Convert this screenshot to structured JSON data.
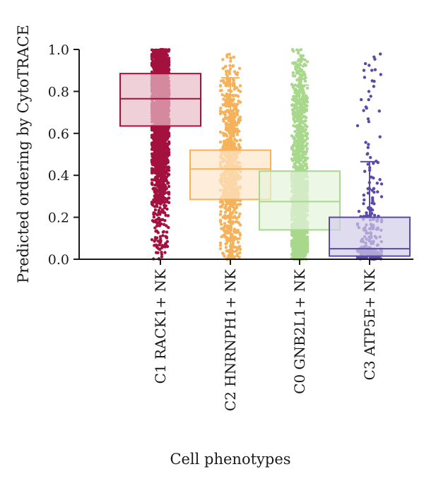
{
  "chart_data": {
    "type": "box",
    "title": "",
    "xlabel": "Cell phenotypes",
    "ylabel": "Predicted ordering by CytoTRACE",
    "ylim": [
      0,
      1.0
    ],
    "yticks": [
      "0.0",
      "0.2",
      "0.4",
      "0.6",
      "0.8",
      "1.0"
    ],
    "ytick_values": [
      0,
      0.2,
      0.4,
      0.6,
      0.8,
      1.0
    ],
    "grid": false,
    "categories": [
      "C1 RACK1+ NK",
      "C2 HNRNPH1+ NK",
      "C0 GNB2L1+ NK",
      "C3 ATP5E+ NK"
    ],
    "series": [
      {
        "category": "C1 RACK1+ NK",
        "color": "#a3123f",
        "fill": "#e8bcc9",
        "whisker_low": 0.27,
        "q1": 0.635,
        "median": 0.765,
        "q3": 0.885,
        "whisker_high": 1.0,
        "points_min": 0.0,
        "points_max": 1.0
      },
      {
        "category": "C2 HNRNPH1+ NK",
        "color": "#f5b25b",
        "fill": "#fde6c8",
        "whisker_low": 0.0,
        "q1": 0.285,
        "median": 0.43,
        "q3": 0.52,
        "whisker_high": 0.865,
        "points_min": 0.0,
        "points_max": 0.98
      },
      {
        "category": "C0 GNB2L1+ NK",
        "color": "#a8d88c",
        "fill": "#e5f4dc",
        "whisker_low": 0.0,
        "q1": 0.14,
        "median": 0.275,
        "q3": 0.42,
        "whisker_high": 0.83,
        "points_min": 0.0,
        "points_max": 1.0
      },
      {
        "category": "C3 ATP5E+ NK",
        "color": "#5b4aa8",
        "fill": "#d3cde9",
        "whisker_low": 0.0,
        "q1": 0.015,
        "median": 0.05,
        "q3": 0.2,
        "whisker_high": 0.465,
        "points_min": 0.0,
        "points_max": 1.0
      }
    ]
  }
}
